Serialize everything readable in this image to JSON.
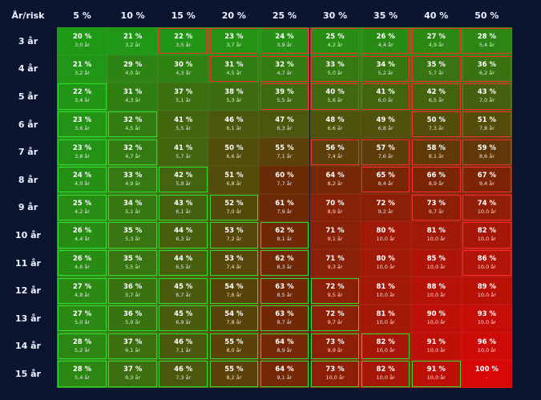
{
  "corner_label": "År/risk",
  "columns": [
    "5 %",
    "10 %",
    "15 %",
    "20 %",
    "25 %",
    "30 %",
    "35 %",
    "40 %",
    "50 %"
  ],
  "rows": [
    {
      "label": "3 år",
      "cells": [
        [
          "20 %",
          "3,0 år"
        ],
        [
          "21 %",
          "3,2 år"
        ],
        [
          "22 %",
          "3,5 år"
        ],
        [
          "23 %",
          "3,7 år"
        ],
        [
          "24 %",
          "3,9 år"
        ],
        [
          "25 %",
          "4,2 år"
        ],
        [
          "26 %",
          "4,4 år"
        ],
        [
          "27 %",
          "4,9 år"
        ],
        [
          "28 %",
          "5,4 år"
        ]
      ]
    },
    {
      "label": "4 år",
      "cells": [
        [
          "21 %",
          "3,2 år"
        ],
        [
          "29 %",
          "4,0 år"
        ],
        [
          "30 %",
          "4,3 år"
        ],
        [
          "31 %",
          "4,5 år"
        ],
        [
          "32 %",
          "4,7 år"
        ],
        [
          "33 %",
          "5,0 år"
        ],
        [
          "34 %",
          "5,2 år"
        ],
        [
          "35 %",
          "5,7 år"
        ],
        [
          "36 %",
          "6,2 år"
        ]
      ]
    },
    {
      "label": "5 år",
      "cells": [
        [
          "22 %",
          "3,4 år"
        ],
        [
          "31 %",
          "4,3 år"
        ],
        [
          "37 %",
          "5,1 år"
        ],
        [
          "38 %",
          "5,3 år"
        ],
        [
          "39 %",
          "5,5 år"
        ],
        [
          "40 %",
          "5,8 år"
        ],
        [
          "41 %",
          "6,0 år"
        ],
        [
          "42 %",
          "6,5 år"
        ],
        [
          "43 %",
          "7,0 år"
        ]
      ]
    },
    {
      "label": "6 år",
      "cells": [
        [
          "23 %",
          "3,6 år"
        ],
        [
          "32 %",
          "4,5 år"
        ],
        [
          "41 %",
          "5,5 år"
        ],
        [
          "46 %",
          "6,1 år"
        ],
        [
          "47 %",
          "6,3 år"
        ],
        [
          "48 %",
          "6,6 år"
        ],
        [
          "49 %",
          "6,8 år"
        ],
        [
          "50 %",
          "7,3 år"
        ],
        [
          "51 %",
          "7,8 år"
        ]
      ]
    },
    {
      "label": "7 år",
      "cells": [
        [
          "23 %",
          "3,8 år"
        ],
        [
          "32 %",
          "4,7 år"
        ],
        [
          "41 %",
          "5,7 år"
        ],
        [
          "50 %",
          "6,6 år"
        ],
        [
          "55 %",
          "7,1 år"
        ],
        [
          "56 %",
          "7,4 år"
        ],
        [
          "57 %",
          "7,6 år"
        ],
        [
          "58 %",
          "8,1 år"
        ],
        [
          "59 %",
          "8,6 år"
        ]
      ]
    },
    {
      "label": "8 år",
      "cells": [
        [
          "24 %",
          "4,0 år"
        ],
        [
          "33 %",
          "4,9 år"
        ],
        [
          "42 %",
          "5,9 år"
        ],
        [
          "51 %",
          "6,8 år"
        ],
        [
          "60 %",
          "7,7 år"
        ],
        [
          "64 %",
          "8,2 år"
        ],
        [
          "65 %",
          "8,4 år"
        ],
        [
          "66 %",
          "8,9 år"
        ],
        [
          "67 %",
          "9,4 år"
        ]
      ]
    },
    {
      "label": "9 år",
      "cells": [
        [
          "25 %",
          "4,2 år"
        ],
        [
          "34 %",
          "5,1 år"
        ],
        [
          "43 %",
          "6,1 år"
        ],
        [
          "52 %",
          "7,0 år"
        ],
        [
          "61 %",
          "7,9 år"
        ],
        [
          "70 %",
          "8,9 år"
        ],
        [
          "72 %",
          "9,2 år"
        ],
        [
          "73 %",
          "9,7 år"
        ],
        [
          "74 %",
          "10,0 år"
        ]
      ]
    },
    {
      "label": "10 år",
      "cells": [
        [
          "26 %",
          "4,4 år"
        ],
        [
          "35 %",
          "5,3 år"
        ],
        [
          "44 %",
          "6,3 år"
        ],
        [
          "53 %",
          "7,2 år"
        ],
        [
          "62 %",
          "8,1 år"
        ],
        [
          "71 %",
          "9,1 år"
        ],
        [
          "80 %",
          "10,0 år"
        ],
        [
          "81 %",
          "10,0 år"
        ],
        [
          "82 %",
          "10,0 år"
        ]
      ]
    },
    {
      "label": "11 år",
      "cells": [
        [
          "26 %",
          "4,6 år"
        ],
        [
          "35 %",
          "5,5 år"
        ],
        [
          "44 %",
          "6,5 år"
        ],
        [
          "53 %",
          "7,4 år"
        ],
        [
          "62 %",
          "8,3 år"
        ],
        [
          "71 %",
          "9,3 år"
        ],
        [
          "80 %",
          "10,0 år"
        ],
        [
          "85 %",
          "10,0 år"
        ],
        [
          "86 %",
          "10,0 år"
        ]
      ]
    },
    {
      "label": "12 år",
      "cells": [
        [
          "27 %",
          "4,8 år"
        ],
        [
          "36 %",
          "5,7 år"
        ],
        [
          "45 %",
          "6,7 år"
        ],
        [
          "54 %",
          "7,6 år"
        ],
        [
          "63 %",
          "8,5 år"
        ],
        [
          "72 %",
          "9,5 år"
        ],
        [
          "81 %",
          "10,0 år"
        ],
        [
          "88 %",
          "10,0 år"
        ],
        [
          "89 %",
          "10,0 år"
        ]
      ]
    },
    {
      "label": "13 år",
      "cells": [
        [
          "27 %",
          "5,0 år"
        ],
        [
          "36 %",
          "5,9 år"
        ],
        [
          "45 %",
          "6,9 år"
        ],
        [
          "54 %",
          "7,8 år"
        ],
        [
          "63 %",
          "8,7 år"
        ],
        [
          "72 %",
          "9,7 år"
        ],
        [
          "81 %",
          "10,0 år"
        ],
        [
          "90 %",
          "10,0 år"
        ],
        [
          "93 %",
          "10,0 år"
        ]
      ]
    },
    {
      "label": "14 år",
      "cells": [
        [
          "28 %",
          "5,2 år"
        ],
        [
          "37 %",
          "6,1 år"
        ],
        [
          "46 %",
          "7,1 år"
        ],
        [
          "55 %",
          "8,0 år"
        ],
        [
          "64 %",
          "8,9 år"
        ],
        [
          "73 %",
          "9,9 år"
        ],
        [
          "82 %",
          "10,0 år"
        ],
        [
          "91 %",
          "10,0 år"
        ],
        [
          "96 %",
          "10,0 år"
        ]
      ]
    },
    {
      "label": "15 år",
      "cells": [
        [
          "28 %",
          "5,4 år"
        ],
        [
          "37 %",
          "6,3 år"
        ],
        [
          "46 %",
          "7,3 år"
        ],
        [
          "55 %",
          "8,2 år"
        ],
        [
          "64 %",
          "9,1 år"
        ],
        [
          "73 %",
          "10,0 år"
        ],
        [
          "82 %",
          "10,0 år"
        ],
        [
          "91 %",
          "10,0 år"
        ],
        [
          "100 %",
          "-"
        ]
      ]
    }
  ],
  "green_outlined": [
    [
      2,
      0
    ],
    [
      3,
      0
    ],
    [
      4,
      0
    ],
    [
      5,
      0
    ],
    [
      6,
      0
    ],
    [
      7,
      0
    ],
    [
      8,
      0
    ],
    [
      9,
      0
    ],
    [
      10,
      0
    ],
    [
      11,
      0
    ],
    [
      12,
      0
    ],
    [
      3,
      1
    ],
    [
      4,
      1
    ],
    [
      5,
      1
    ],
    [
      6,
      1
    ],
    [
      7,
      1
    ],
    [
      8,
      1
    ],
    [
      9,
      1
    ],
    [
      10,
      1
    ],
    [
      11,
      1
    ],
    [
      12,
      1
    ],
    [
      5,
      2
    ],
    [
      6,
      2
    ],
    [
      7,
      2
    ],
    [
      8,
      2
    ],
    [
      9,
      2
    ],
    [
      10,
      2
    ],
    [
      11,
      2
    ],
    [
      12,
      2
    ],
    [
      6,
      3
    ],
    [
      7,
      3
    ],
    [
      8,
      3
    ],
    [
      9,
      3
    ],
    [
      10,
      3
    ],
    [
      11,
      3
    ],
    [
      12,
      3
    ],
    [
      7,
      4
    ],
    [
      8,
      4
    ],
    [
      9,
      4
    ],
    [
      10,
      4
    ],
    [
      11,
      4
    ],
    [
      12,
      4
    ],
    [
      9,
      5
    ],
    [
      10,
      5
    ],
    [
      11,
      5
    ],
    [
      12,
      5
    ],
    [
      11,
      6
    ],
    [
      12,
      6
    ],
    [
      12,
      7
    ]
  ],
  "red_outlined": [
    [
      0,
      2
    ],
    [
      0,
      3
    ],
    [
      0,
      4
    ],
    [
      0,
      5
    ],
    [
      0,
      6
    ],
    [
      0,
      7
    ],
    [
      0,
      8
    ],
    [
      1,
      3
    ],
    [
      1,
      4
    ],
    [
      1,
      5
    ],
    [
      1,
      6
    ],
    [
      1,
      7
    ],
    [
      1,
      8
    ],
    [
      2,
      4
    ],
    [
      2,
      5
    ],
    [
      2,
      6
    ],
    [
      2,
      7
    ],
    [
      2,
      8
    ],
    [
      3,
      7
    ],
    [
      3,
      8
    ],
    [
      4,
      5
    ],
    [
      4,
      6
    ],
    [
      4,
      7
    ],
    [
      4,
      8
    ],
    [
      5,
      6
    ],
    [
      5,
      7
    ],
    [
      5,
      8
    ],
    [
      6,
      7
    ],
    [
      6,
      8
    ],
    [
      7,
      8
    ],
    [
      8,
      8
    ]
  ],
  "colors": {
    "background": "#0b1530",
    "green": "#1e9a16",
    "red": "#cc0a0a",
    "green_outline": "#2ee02a",
    "red_outline": "#ff2a2a"
  }
}
